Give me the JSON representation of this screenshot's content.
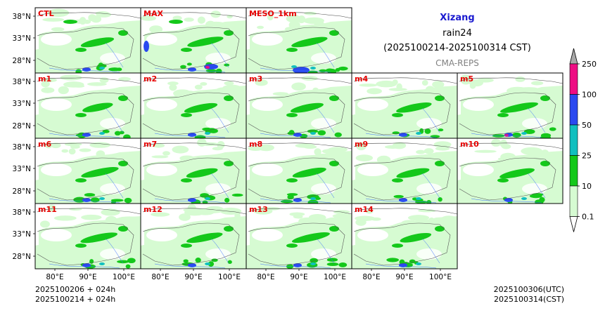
{
  "header": {
    "region": "Xizang",
    "variable": "rain24",
    "period": "(2025100214-2025100314 CST)",
    "source": "CMA-REPS"
  },
  "axes": {
    "lat_ticks": [
      "38°N",
      "33°N",
      "28°N"
    ],
    "lon_ticks": [
      "80°E",
      "90°E",
      "100°E"
    ]
  },
  "panels": [
    {
      "label": "CTL"
    },
    {
      "label": "MAX"
    },
    {
      "label": "MESO_1km"
    },
    {
      "label": "m1"
    },
    {
      "label": "m2"
    },
    {
      "label": "m3"
    },
    {
      "label": "m4"
    },
    {
      "label": "m5"
    },
    {
      "label": "m6"
    },
    {
      "label": "m7"
    },
    {
      "label": "m8"
    },
    {
      "label": "m9"
    },
    {
      "label": "m10"
    },
    {
      "label": "m11"
    },
    {
      "label": "m12"
    },
    {
      "label": "m13"
    },
    {
      "label": "m14"
    }
  ],
  "colorbar": {
    "levels": [
      "0.1",
      "10",
      "25",
      "50",
      "100",
      "250"
    ],
    "colors": [
      "#d6fbd2",
      "#14c81a",
      "#11bfbf",
      "#2a49f0",
      "#ee0d83"
    ],
    "under_color": "#ffffff",
    "over_color": "#a8a8a8"
  },
  "footer": {
    "init_1": "2025100206  +  024h",
    "init_2": "2025100214  +  024h",
    "valid_utc": "2025100306(UTC)",
    "valid_cst": "2025100314(CST)"
  },
  "colors": {
    "panel_label": "#e60000",
    "title_region": "#1a1ad0",
    "source": "#808080"
  }
}
